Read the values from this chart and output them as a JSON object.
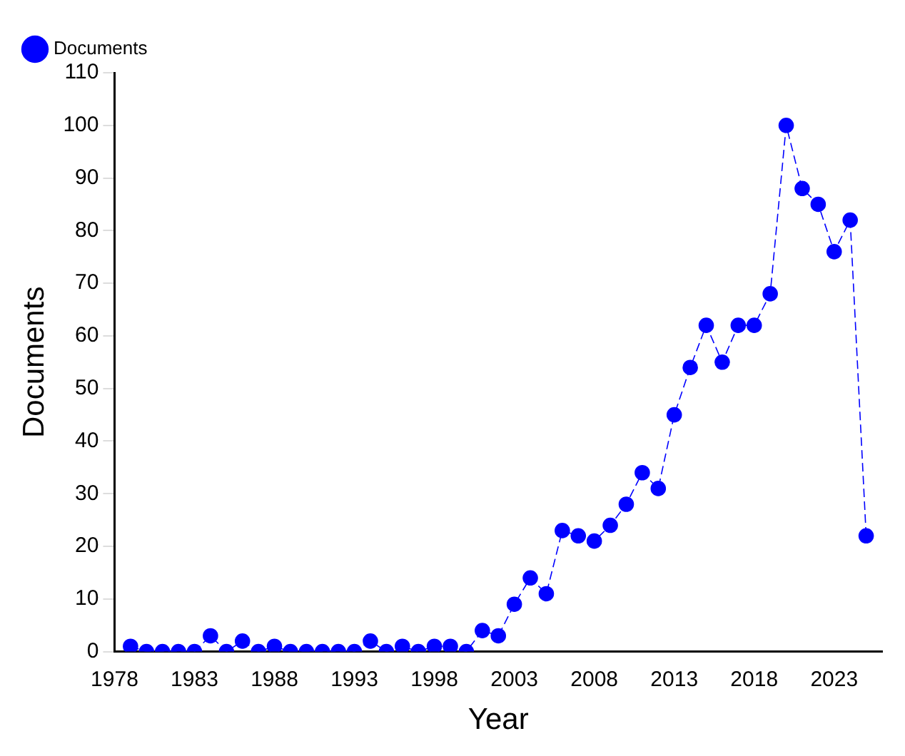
{
  "chart_data": {
    "type": "line",
    "xlabel": "Year",
    "ylabel": "Documents",
    "x": [
      1979,
      1980,
      1981,
      1982,
      1983,
      1984,
      1985,
      1986,
      1987,
      1988,
      1989,
      1990,
      1991,
      1992,
      1993,
      1994,
      1995,
      1996,
      1997,
      1998,
      1999,
      2000,
      2001,
      2002,
      2003,
      2004,
      2005,
      2006,
      2007,
      2008,
      2009,
      2010,
      2011,
      2012,
      2013,
      2014,
      2015,
      2016,
      2017,
      2018,
      2019,
      2020,
      2021,
      2022,
      2023,
      2024,
      2025
    ],
    "series": [
      {
        "name": "Documents",
        "color": "#0000ff",
        "values": [
          1,
          0,
          0,
          0,
          0,
          3,
          0,
          2,
          0,
          1,
          0,
          0,
          0,
          0,
          0,
          2,
          0,
          1,
          0,
          1,
          1,
          0,
          4,
          3,
          9,
          14,
          11,
          23,
          22,
          21,
          24,
          28,
          34,
          31,
          45,
          54,
          62,
          55,
          62,
          62,
          68,
          100,
          88,
          85,
          76,
          82,
          22
        ]
      }
    ],
    "xlim": [
      1978,
      2026
    ],
    "xticks": [
      1978,
      1983,
      1988,
      1993,
      1998,
      2003,
      2008,
      2013,
      2018,
      2023
    ],
    "ylim": [
      0,
      110
    ],
    "yticks": [
      0,
      10,
      20,
      30,
      40,
      50,
      60,
      70,
      80,
      90,
      100,
      110
    ],
    "grid": false,
    "legend": "top left",
    "marker": "circle",
    "line_style": "dashed"
  }
}
